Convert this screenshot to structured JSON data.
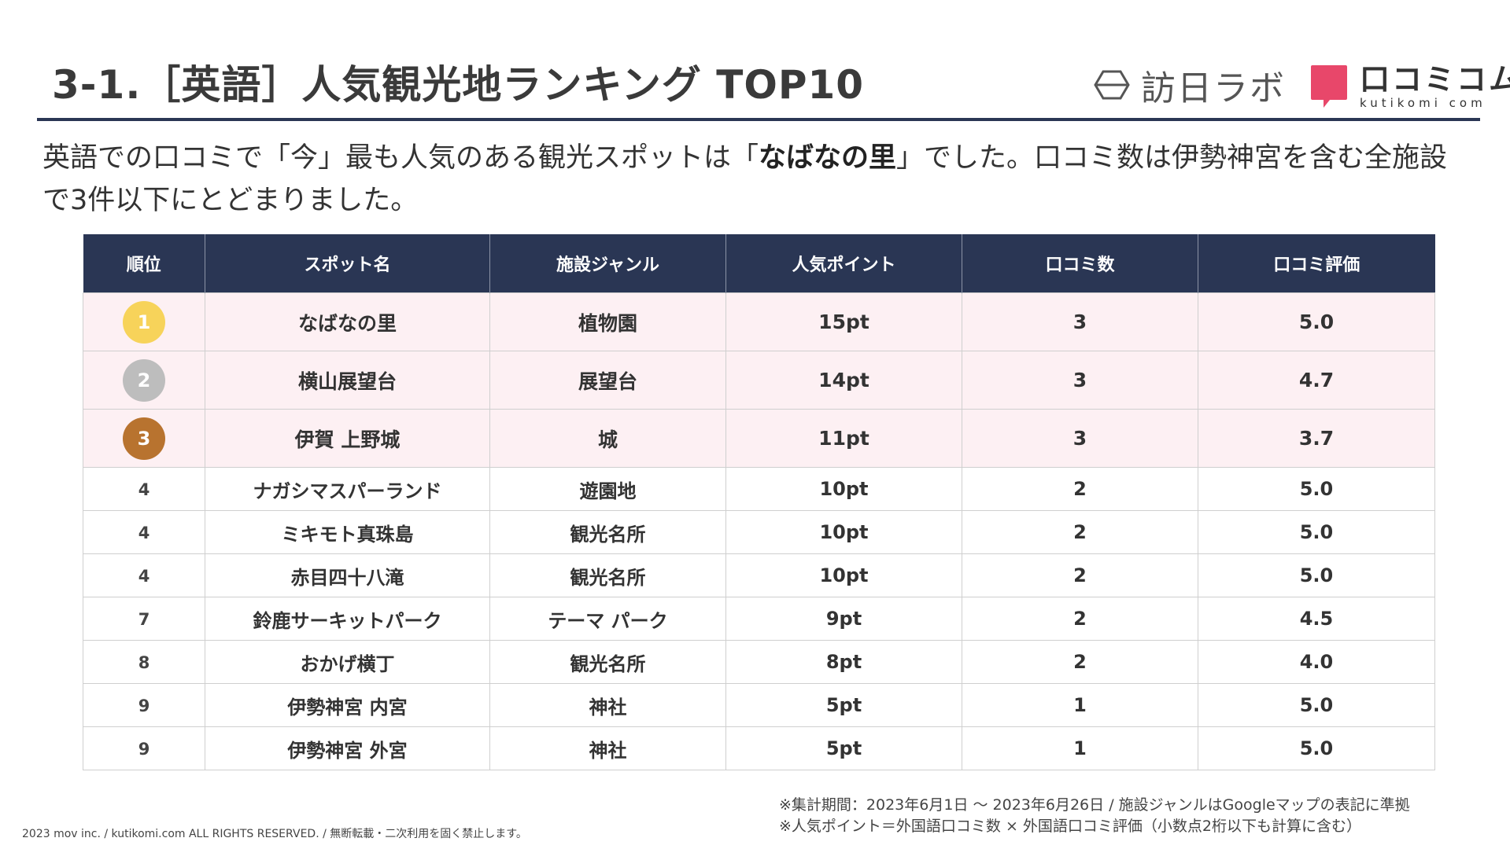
{
  "header": {
    "title": "3-1.［英語］人気観光地ランキング TOP10",
    "logo_houjin": "訪日ラボ",
    "logo_kutikomi": "口コミコム",
    "logo_kutikomi_en": "kutikomi com",
    "accent_color": "#2a3654",
    "logo_mark_color": "#e8476a"
  },
  "lead": {
    "part1": "英語での口コミで「今」最も人気のある観光スポットは「",
    "highlight": "なばなの里",
    "part2": "」でした。口コミ数は伊勢神宮を含む全施設で3件以下にとどまりました。"
  },
  "table": {
    "columns": [
      "順位",
      "スポット名",
      "施設ジャンル",
      "人気ポイント",
      "口コミ数",
      "口コミ評価"
    ],
    "medal_colors": [
      "#f7d35a",
      "#bdbdbd",
      "#b8732f"
    ],
    "rows": [
      {
        "rank": "1",
        "name": "なばなの里",
        "genre": "植物園",
        "points": "15pt",
        "reviews": "3",
        "rating": "5.0"
      },
      {
        "rank": "2",
        "name": "横山展望台",
        "genre": "展望台",
        "points": "14pt",
        "reviews": "3",
        "rating": "4.7"
      },
      {
        "rank": "3",
        "name": "伊賀 上野城",
        "genre": "城",
        "points": "11pt",
        "reviews": "3",
        "rating": "3.7"
      },
      {
        "rank": "4",
        "name": "ナガシマスパーランド",
        "genre": "遊園地",
        "points": "10pt",
        "reviews": "2",
        "rating": "5.0"
      },
      {
        "rank": "4",
        "name": "ミキモト真珠島",
        "genre": "観光名所",
        "points": "10pt",
        "reviews": "2",
        "rating": "5.0"
      },
      {
        "rank": "4",
        "name": "赤目四十八滝",
        "genre": "観光名所",
        "points": "10pt",
        "reviews": "2",
        "rating": "5.0"
      },
      {
        "rank": "7",
        "name": "鈴鹿サーキットパーク",
        "genre": "テーマ パーク",
        "points": "9pt",
        "reviews": "2",
        "rating": "4.5"
      },
      {
        "rank": "8",
        "name": "おかげ横丁",
        "genre": "観光名所",
        "points": "8pt",
        "reviews": "2",
        "rating": "4.0"
      },
      {
        "rank": "9",
        "name": "伊勢神宮 内宮",
        "genre": "神社",
        "points": "5pt",
        "reviews": "1",
        "rating": "5.0"
      },
      {
        "rank": "9",
        "name": "伊勢神宮 外宮",
        "genre": "神社",
        "points": "5pt",
        "reviews": "1",
        "rating": "5.0"
      }
    ]
  },
  "footer": {
    "copyright": "2023 mov inc. / kutikomi.com ALL RIGHTS RESERVED. / 無断転載・二次利用を固く禁止します。",
    "note1": "※集計期間：2023年6月1日 〜 2023年6月26日 / 施設ジャンルはGoogleマップの表記に準拠",
    "note2": "※人気ポイント＝外国語口コミ数 × 外国語口コミ評価（小数点2桁以下も計算に含む）"
  }
}
